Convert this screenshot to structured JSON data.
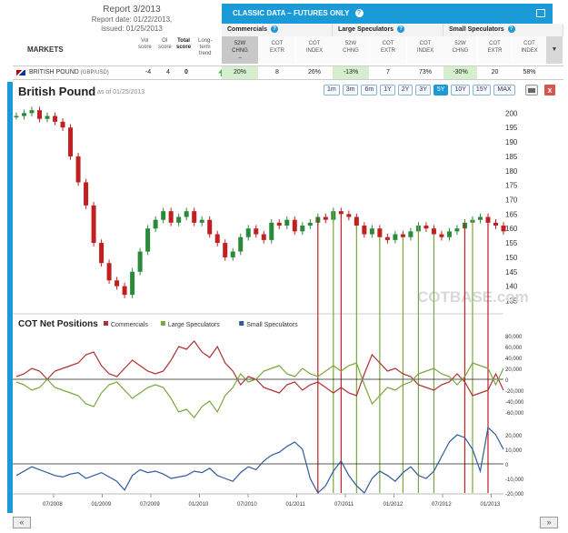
{
  "report": {
    "title": "Report 3/2013",
    "date_line": "Report date: 01/22/2013,",
    "issued_line": "issued: 01/25/2013"
  },
  "table_header": {
    "markets": "MARKETS",
    "vol_score": [
      "Vol",
      "score"
    ],
    "oi_score": [
      "OI",
      "score"
    ],
    "total_score": [
      "Total",
      "score"
    ],
    "long_term_trend": [
      "Long-",
      "term",
      "trend"
    ]
  },
  "classic": {
    "title": "CLASSIC DATA – FUTURES ONLY",
    "help_icon": "question-icon",
    "print_icon": "printer-icon"
  },
  "groups": [
    {
      "label": "Commercials",
      "cols": [
        [
          "52W",
          "CHNG"
        ],
        [
          "COT",
          "EXTR"
        ],
        [
          "COT",
          "INDEX"
        ]
      ]
    },
    {
      "label": "Large Speculators",
      "cols": [
        [
          "52W",
          "CHNG"
        ],
        [
          "COT",
          "EXTR"
        ],
        [
          "COT",
          "INDEX"
        ]
      ]
    },
    {
      "label": "Small Speculators",
      "cols": [
        [
          "52W",
          "CHNG"
        ],
        [
          "COT",
          "EXTR"
        ],
        [
          "COT",
          "INDEX"
        ]
      ]
    }
  ],
  "collapse_symbol": "▼",
  "row": {
    "market": "BRITISH POUND",
    "pair": "(GBP/USD)",
    "vol": "-4",
    "oi": "4",
    "total": "0",
    "comm": [
      "20%",
      "8",
      "26%"
    ],
    "large": [
      "-13%",
      "7",
      "73%"
    ],
    "small": [
      "-30%",
      "20",
      "58%"
    ]
  },
  "chart": {
    "title": "British Pound",
    "asof": "as of 01/25/2013",
    "ranges": [
      "1m",
      "3m",
      "6m",
      "1Y",
      "2Y",
      "3Y",
      "5Y",
      "10Y",
      "15Y",
      "MAX"
    ],
    "active_range": "5Y",
    "close_symbol": "x",
    "watermark": "COTBASE.com",
    "colors": {
      "commercials": "#b03030",
      "large": "#7aa83a",
      "small": "#2f5aa0",
      "up": "#2a8a3a",
      "down": "#c02020"
    },
    "net_title": "COT Net Positions",
    "legend": [
      "Commercials",
      "Large Speculators",
      "Small Speculators"
    ]
  },
  "chart_data": [
    {
      "type": "line",
      "title": "British Pound",
      "y_ticks": [
        135,
        140,
        145,
        150,
        155,
        160,
        165,
        170,
        175,
        180,
        185,
        190,
        195,
        200
      ],
      "ylim": [
        132,
        202
      ],
      "x_ticks": [
        "07/2008",
        "01/2009",
        "07/2009",
        "01/2010",
        "07/2010",
        "01/2011",
        "07/2011",
        "01/2012",
        "07/2012",
        "01/2013"
      ],
      "series": [
        {
          "values": [
            199,
            200,
            201,
            198,
            199,
            197,
            195,
            185,
            176,
            168,
            155,
            148,
            142,
            140,
            137,
            145,
            152,
            160,
            163,
            166,
            162,
            164,
            166,
            162,
            163,
            158,
            155,
            150,
            152,
            157,
            160,
            158,
            156,
            162,
            161,
            163,
            159,
            161,
            162,
            164,
            163,
            166,
            165,
            164,
            161,
            158,
            160,
            157,
            156,
            158,
            157,
            159,
            161,
            160,
            158,
            157,
            159,
            160,
            162,
            163,
            164,
            162,
            161,
            159
          ]
        }
      ]
    },
    {
      "type": "line",
      "title": "COT Net Positions",
      "y_ticks_upper": [
        "80,000",
        "60,000",
        "40,000",
        "20,000",
        "0",
        "-20,000",
        "-40,000",
        "-60,000"
      ],
      "y_ticks_lower": [
        "20,000",
        "10,000",
        "0",
        "-10,000",
        "-20,000"
      ],
      "series": [
        {
          "name": "Commercials",
          "values": [
            5,
            10,
            20,
            15,
            0,
            15,
            20,
            25,
            30,
            45,
            50,
            25,
            10,
            5,
            20,
            35,
            25,
            15,
            10,
            15,
            35,
            60,
            55,
            70,
            50,
            40,
            60,
            30,
            15,
            -10,
            5,
            0,
            -15,
            -20,
            -25,
            -10,
            -5,
            -20,
            -10,
            -5,
            -15,
            -25,
            -15,
            -25,
            -30,
            10,
            45,
            30,
            15,
            20,
            10,
            5,
            -10,
            -15,
            -20,
            -10,
            -5,
            10,
            -5,
            -30,
            -25,
            -20,
            10,
            -20
          ]
        },
        {
          "name": "Large Speculators",
          "values": [
            -5,
            -10,
            -20,
            -15,
            0,
            -15,
            -20,
            -25,
            -30,
            -45,
            -50,
            -25,
            -10,
            -5,
            -20,
            -35,
            -25,
            -15,
            -10,
            -15,
            -35,
            -60,
            -55,
            -70,
            -50,
            -40,
            -60,
            -30,
            -15,
            10,
            -5,
            0,
            15,
            20,
            25,
            10,
            5,
            20,
            10,
            5,
            15,
            25,
            15,
            25,
            30,
            -10,
            -45,
            -30,
            -15,
            -20,
            -10,
            -5,
            10,
            15,
            20,
            10,
            5,
            -10,
            5,
            30,
            25,
            20,
            -10,
            20
          ]
        },
        {
          "name": "Small Speculators",
          "values": [
            -8,
            -5,
            -2,
            -4,
            -6,
            -8,
            -9,
            -7,
            -6,
            -10,
            -8,
            -6,
            -9,
            -12,
            -18,
            -8,
            -4,
            -6,
            -5,
            -7,
            -10,
            -9,
            -8,
            -5,
            -6,
            -3,
            -8,
            -10,
            -12,
            -6,
            -2,
            -4,
            2,
            6,
            8,
            12,
            15,
            10,
            -10,
            -20,
            -15,
            -5,
            2,
            -8,
            -15,
            -20,
            -10,
            -5,
            -8,
            -12,
            -6,
            -2,
            -8,
            -10,
            -5,
            5,
            15,
            20,
            18,
            10,
            -5,
            25,
            20,
            10
          ]
        }
      ]
    }
  ]
}
